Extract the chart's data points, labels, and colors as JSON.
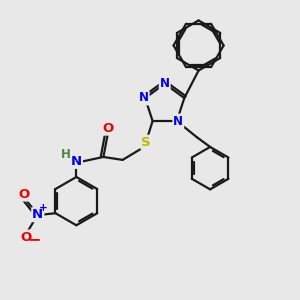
{
  "bg_color": "#e8e8e8",
  "bond_color": "#1a1a1a",
  "bond_width": 1.6,
  "atom_colors": {
    "N": "#0000ee",
    "S": "#bbbb00",
    "O": "#ee0000",
    "H": "#448844",
    "C": "#1a1a1a"
  },
  "font_size": 8.5,
  "fig_size": [
    3.0,
    3.0
  ],
  "dpi": 100
}
